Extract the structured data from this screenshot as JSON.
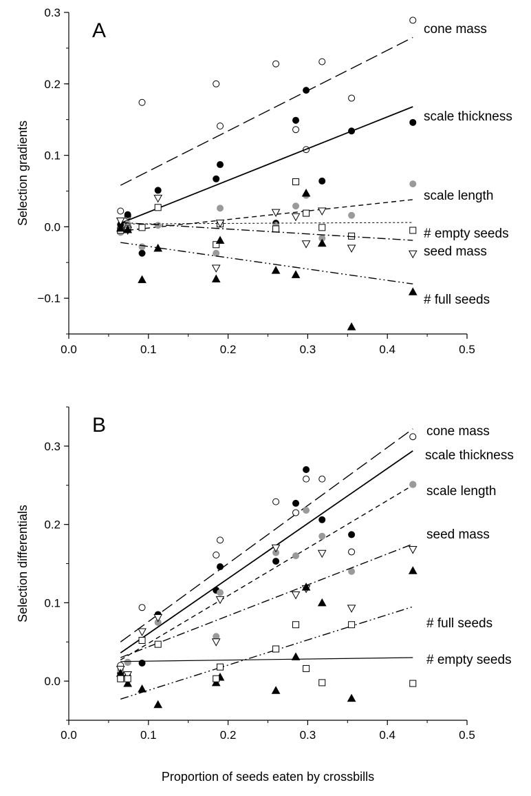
{
  "chart_data": [
    {
      "type": "scatter",
      "panel_label": "A",
      "ylabel": "Selection gradients",
      "xlabel": "",
      "xlim": [
        0.0,
        0.5
      ],
      "ylim": [
        -0.15,
        0.3
      ],
      "xticks": [
        "0.0",
        "0.1",
        "0.2",
        "0.3",
        "0.4",
        "0.5"
      ],
      "yticks": [
        "−0.1",
        "0.0",
        "0.1",
        "0.2",
        "0.3"
      ],
      "series": [
        {
          "name": "cone mass",
          "marker": "open-circle",
          "line_style": "long-dash",
          "fit": [
            [
              0.065,
              0.058
            ],
            [
              0.432,
              0.265
            ]
          ],
          "points": [
            [
              0.065,
              0.022
            ],
            [
              0.074,
              0.015
            ],
            [
              0.092,
              0.174
            ],
            [
              0.185,
              0.2
            ],
            [
              0.19,
              0.141
            ],
            [
              0.26,
              0.228
            ],
            [
              0.285,
              0.136
            ],
            [
              0.298,
              0.108
            ],
            [
              0.318,
              0.231
            ],
            [
              0.355,
              0.18
            ],
            [
              0.432,
              0.289
            ]
          ]
        },
        {
          "name": "scale thickness",
          "marker": "filled-circle",
          "line_style": "solid",
          "fit": [
            [
              0.065,
              0.005
            ],
            [
              0.432,
              0.168
            ]
          ],
          "points": [
            [
              0.065,
              0.003
            ],
            [
              0.074,
              0.017
            ],
            [
              0.092,
              -0.037
            ],
            [
              0.112,
              0.051
            ],
            [
              0.185,
              0.067
            ],
            [
              0.19,
              0.087
            ],
            [
              0.26,
              0.005
            ],
            [
              0.285,
              0.149
            ],
            [
              0.298,
              0.191
            ],
            [
              0.318,
              0.064
            ],
            [
              0.355,
              0.134
            ],
            [
              0.432,
              0.146
            ]
          ]
        },
        {
          "name": "scale length",
          "marker": "grey-circle",
          "line_style": "short-dash",
          "fit": [
            [
              0.065,
              -0.006
            ],
            [
              0.432,
              0.038
            ]
          ],
          "points": [
            [
              0.065,
              -0.008
            ],
            [
              0.074,
              0.004
            ],
            [
              0.092,
              -0.028
            ],
            [
              0.112,
              0.002
            ],
            [
              0.185,
              -0.037
            ],
            [
              0.19,
              0.026
            ],
            [
              0.26,
              0.002
            ],
            [
              0.285,
              0.029
            ],
            [
              0.298,
              0.044
            ],
            [
              0.318,
              -0.016
            ],
            [
              0.355,
              0.016
            ],
            [
              0.432,
              0.06
            ]
          ]
        },
        {
          "name": "# empty seeds",
          "marker": "open-square",
          "line_style": "fine-dash",
          "fit": [
            [
              0.065,
              0.004
            ],
            [
              0.432,
              0.006
            ]
          ],
          "points": [
            [
              0.065,
              -0.005
            ],
            [
              0.074,
              -0.003
            ],
            [
              0.092,
              -0.001
            ],
            [
              0.112,
              0.027
            ],
            [
              0.185,
              -0.025
            ],
            [
              0.19,
              0.004
            ],
            [
              0.26,
              -0.003
            ],
            [
              0.285,
              0.063
            ],
            [
              0.298,
              0.019
            ],
            [
              0.318,
              -0.001
            ],
            [
              0.355,
              -0.013
            ],
            [
              0.432,
              -0.005
            ]
          ]
        },
        {
          "name": "seed mass",
          "marker": "open-triangle-down",
          "line_style": "dash-dot",
          "fit": [
            [
              0.065,
              0.006
            ],
            [
              0.432,
              -0.019
            ]
          ],
          "points": [
            [
              0.065,
              0.008
            ],
            [
              0.074,
              -0.005
            ],
            [
              0.112,
              0.04
            ],
            [
              0.185,
              -0.058
            ],
            [
              0.19,
              0.005
            ],
            [
              0.26,
              0.02
            ],
            [
              0.285,
              0.014
            ],
            [
              0.298,
              -0.024
            ],
            [
              0.318,
              0.022
            ],
            [
              0.355,
              -0.03
            ],
            [
              0.432,
              -0.038
            ]
          ]
        },
        {
          "name": "# full seeds",
          "marker": "filled-triangle-up",
          "line_style": "dash-dot-dot",
          "fit": [
            [
              0.065,
              -0.022
            ],
            [
              0.432,
              -0.08
            ]
          ],
          "points": [
            [
              0.065,
              -0.002
            ],
            [
              0.074,
              -0.004
            ],
            [
              0.092,
              -0.074
            ],
            [
              0.112,
              -0.03
            ],
            [
              0.185,
              -0.073
            ],
            [
              0.19,
              -0.019
            ],
            [
              0.26,
              -0.061
            ],
            [
              0.285,
              -0.067
            ],
            [
              0.298,
              0.047
            ],
            [
              0.318,
              -0.023
            ],
            [
              0.355,
              -0.14
            ],
            [
              0.432,
              -0.091
            ]
          ]
        }
      ]
    },
    {
      "type": "scatter",
      "panel_label": "B",
      "ylabel": "Selection differentials",
      "xlabel": "Proportion of seeds eaten by crossbills",
      "xlim": [
        0.0,
        0.5
      ],
      "ylim": [
        -0.05,
        0.35
      ],
      "xticks": [
        "0.0",
        "0.1",
        "0.2",
        "0.3",
        "0.4",
        "0.5"
      ],
      "yticks": [
        "0.0",
        "0.1",
        "0.2",
        "0.3"
      ],
      "series": [
        {
          "name": "cone mass",
          "marker": "open-circle",
          "line_style": "long-dash",
          "fit": [
            [
              0.065,
              0.05
            ],
            [
              0.432,
              0.322
            ]
          ],
          "points": [
            [
              0.065,
              0.02
            ],
            [
              0.074,
              0.024
            ],
            [
              0.092,
              0.094
            ],
            [
              0.185,
              0.161
            ],
            [
              0.19,
              0.18
            ],
            [
              0.26,
              0.229
            ],
            [
              0.285,
              0.215
            ],
            [
              0.298,
              0.258
            ],
            [
              0.318,
              0.258
            ],
            [
              0.355,
              0.165
            ],
            [
              0.432,
              0.312
            ]
          ]
        },
        {
          "name": "scale thickness",
          "marker": "filled-circle",
          "line_style": "solid",
          "fit": [
            [
              0.065,
              0.036
            ],
            [
              0.432,
              0.294
            ]
          ],
          "points": [
            [
              0.065,
              0.01
            ],
            [
              0.074,
              0.006
            ],
            [
              0.092,
              0.023
            ],
            [
              0.112,
              0.085
            ],
            [
              0.185,
              0.116
            ],
            [
              0.19,
              0.146
            ],
            [
              0.26,
              0.153
            ],
            [
              0.285,
              0.227
            ],
            [
              0.298,
              0.27
            ],
            [
              0.318,
              0.206
            ],
            [
              0.355,
              0.187
            ],
            [
              0.432,
              0.251
            ]
          ]
        },
        {
          "name": "scale length",
          "marker": "grey-circle",
          "line_style": "short-dash",
          "fit": [
            [
              0.065,
              0.027
            ],
            [
              0.432,
              0.25
            ]
          ],
          "points": [
            [
              0.065,
              0.014
            ],
            [
              0.074,
              0.024
            ],
            [
              0.112,
              0.075
            ],
            [
              0.185,
              0.057
            ],
            [
              0.19,
              0.113
            ],
            [
              0.26,
              0.164
            ],
            [
              0.285,
              0.16
            ],
            [
              0.298,
              0.218
            ],
            [
              0.318,
              0.185
            ],
            [
              0.355,
              0.14
            ],
            [
              0.432,
              0.251
            ]
          ]
        },
        {
          "name": "seed mass",
          "marker": "open-triangle-down",
          "line_style": "dash-dot",
          "fit": [
            [
              0.065,
              0.03
            ],
            [
              0.432,
              0.175
            ]
          ],
          "points": [
            [
              0.065,
              0.015
            ],
            [
              0.074,
              0.008
            ],
            [
              0.092,
              0.063
            ],
            [
              0.112,
              0.081
            ],
            [
              0.185,
              0.05
            ],
            [
              0.19,
              0.104
            ],
            [
              0.26,
              0.17
            ],
            [
              0.285,
              0.11
            ],
            [
              0.298,
              0.118
            ],
            [
              0.318,
              0.163
            ],
            [
              0.355,
              0.093
            ],
            [
              0.432,
              0.168
            ]
          ]
        },
        {
          "name": "# full seeds",
          "marker": "filled-triangle-up",
          "line_style": "dash-dot-dot",
          "fit": [
            [
              0.065,
              -0.023
            ],
            [
              0.432,
              0.095
            ]
          ],
          "points": [
            [
              0.065,
              0.01
            ],
            [
              0.074,
              -0.003
            ],
            [
              0.092,
              -0.01
            ],
            [
              0.112,
              -0.03
            ],
            [
              0.185,
              -0.002
            ],
            [
              0.19,
              0.005
            ],
            [
              0.26,
              -0.012
            ],
            [
              0.285,
              0.031
            ],
            [
              0.298,
              0.12
            ],
            [
              0.318,
              0.1
            ],
            [
              0.355,
              -0.022
            ],
            [
              0.432,
              0.141
            ]
          ]
        },
        {
          "name": "# empty seeds",
          "marker": "open-square",
          "line_style": "solid-thin",
          "fit": [
            [
              0.065,
              0.025
            ],
            [
              0.432,
              0.03
            ]
          ],
          "points": [
            [
              0.065,
              0.003
            ],
            [
              0.074,
              0.003
            ],
            [
              0.092,
              0.052
            ],
            [
              0.112,
              0.047
            ],
            [
              0.185,
              0.003
            ],
            [
              0.19,
              0.018
            ],
            [
              0.26,
              0.041
            ],
            [
              0.285,
              0.072
            ],
            [
              0.298,
              0.016
            ],
            [
              0.318,
              -0.002
            ],
            [
              0.355,
              0.072
            ],
            [
              0.432,
              -0.003
            ]
          ]
        }
      ]
    }
  ]
}
